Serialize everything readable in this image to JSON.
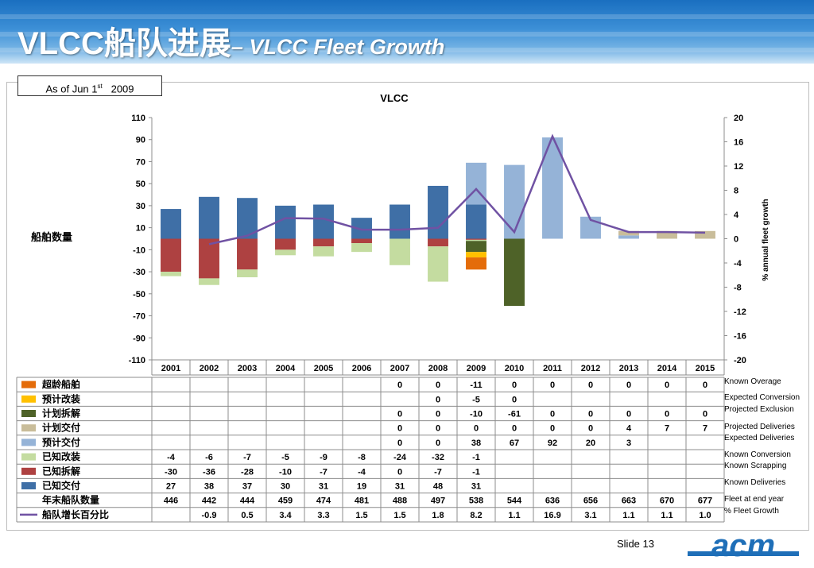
{
  "title": {
    "cn": "VLCC船队进展",
    "en": "– VLCC Fleet Growth"
  },
  "as_of": {
    "prefix": "As of Jun 1",
    "sup": "st",
    "year": "2009"
  },
  "slide": {
    "label": "Slide 13"
  },
  "logo": {
    "text": "acm"
  },
  "left_axis_label": "船舶数量",
  "right_axis_label": "% annual fleet growth",
  "colors": {
    "known_deliveries": "#3f6fa6",
    "known_scrapping": "#ae4141",
    "known_conversion": "#c4dca0",
    "expected_deliveries": "#95b3d7",
    "projected_deliveries": "#c9bd9a",
    "projected_exclusion": "#4e6228",
    "expected_conversion": "#ffc000",
    "known_overage": "#e46c0a",
    "growth_line": "#7052a3"
  },
  "chart_data": {
    "type": "bar",
    "title": "VLCC",
    "categories": [
      "2001",
      "2002",
      "2003",
      "2004",
      "2005",
      "2006",
      "2007",
      "2008",
      "2009",
      "2010",
      "2011",
      "2012",
      "2013",
      "2014",
      "2015"
    ],
    "ylim": [
      -110,
      110
    ],
    "yticks": [
      110,
      90,
      70,
      50,
      30,
      10,
      -10,
      -30,
      -50,
      -70,
      -90,
      -110
    ],
    "y2lim": [
      -20,
      20
    ],
    "y2ticks": [
      20,
      16,
      12,
      8,
      4,
      0,
      -4,
      -8,
      -12,
      -16,
      -20
    ],
    "series": [
      {
        "key": "known_deliveries",
        "values": [
          27,
          38,
          37,
          30,
          31,
          19,
          31,
          48,
          31,
          null,
          null,
          null,
          null,
          null,
          null
        ]
      },
      {
        "key": "expected_deliveries",
        "values": [
          null,
          null,
          null,
          null,
          null,
          null,
          0,
          0,
          38,
          67,
          92,
          20,
          3,
          null,
          null
        ]
      },
      {
        "key": "projected_deliveries",
        "values": [
          null,
          null,
          null,
          null,
          null,
          null,
          0,
          0,
          0,
          0,
          0,
          0,
          4,
          7,
          7
        ]
      },
      {
        "key": "known_scrapping",
        "values": [
          -30,
          -36,
          -28,
          -10,
          -7,
          -4,
          0,
          -7,
          -1,
          null,
          null,
          null,
          null,
          null,
          null
        ]
      },
      {
        "key": "known_conversion",
        "values": [
          -4,
          -6,
          -7,
          -5,
          -9,
          -8,
          -24,
          -32,
          -1,
          null,
          null,
          null,
          null,
          null,
          null
        ]
      },
      {
        "key": "projected_exclusion",
        "values": [
          null,
          null,
          null,
          null,
          null,
          null,
          0,
          0,
          -10,
          -61,
          0,
          0,
          0,
          0,
          0
        ]
      },
      {
        "key": "expected_conversion",
        "values": [
          null,
          null,
          null,
          null,
          null,
          null,
          null,
          0,
          -5,
          0,
          null,
          null,
          null,
          null,
          null
        ]
      },
      {
        "key": "known_overage",
        "values": [
          null,
          null,
          null,
          null,
          null,
          null,
          0,
          0,
          -11,
          0,
          0,
          0,
          0,
          0,
          0
        ]
      }
    ],
    "fleet_at_end_year": [
      446,
      442,
      444,
      459,
      474,
      481,
      488,
      497,
      538,
      544,
      636,
      656,
      663,
      670,
      677
    ],
    "growth_pct": [
      null,
      -0.9,
      0.5,
      3.4,
      3.3,
      1.5,
      1.5,
      1.8,
      8.2,
      1.1,
      16.9,
      3.1,
      1.1,
      1.1,
      1.0
    ],
    "table_rows": [
      {
        "key": "known_overage",
        "cn": "超龄船舶",
        "en": "Known Overage",
        "marker": "box",
        "cells": [
          "",
          "",
          "",
          "",
          "",
          "",
          "0",
          "0",
          "-11",
          "0",
          "0",
          "0",
          "0",
          "0",
          "0"
        ]
      },
      {
        "key": "expected_conversion",
        "cn": "预计改装",
        "en": "Expected Conversion",
        "marker": "box",
        "cells": [
          "",
          "",
          "",
          "",
          "",
          "",
          "",
          "0",
          "-5",
          "0",
          "",
          "",
          "",
          "",
          ""
        ]
      },
      {
        "key": "projected_exclusion",
        "cn": "计划拆解",
        "en": "Projected Exclusion",
        "marker": "box",
        "cells": [
          "",
          "",
          "",
          "",
          "",
          "",
          "0",
          "0",
          "-10",
          "-61",
          "0",
          "0",
          "0",
          "0",
          "0"
        ]
      },
      {
        "key": "projected_deliveries",
        "cn": "计划交付",
        "en": "Projected Deliveries",
        "marker": "box",
        "cells": [
          "",
          "",
          "",
          "",
          "",
          "",
          "0",
          "0",
          "0",
          "0",
          "0",
          "0",
          "4",
          "7",
          "7"
        ]
      },
      {
        "key": "expected_deliveries",
        "cn": "预计交付",
        "en": "Expected Deliveries",
        "marker": "box",
        "cells": [
          "",
          "",
          "",
          "",
          "",
          "",
          "0",
          "0",
          "38",
          "67",
          "92",
          "20",
          "3",
          "",
          ""
        ]
      },
      {
        "key": "known_conversion",
        "cn": "已知改装",
        "en": "Known Conversion",
        "marker": "box",
        "cells": [
          "-4",
          "-6",
          "-7",
          "-5",
          "-9",
          "-8",
          "-24",
          "-32",
          "-1",
          "",
          "",
          "",
          "",
          "",
          ""
        ]
      },
      {
        "key": "known_scrapping",
        "cn": "已知拆解",
        "en": "Known Scrapping",
        "marker": "box",
        "cells": [
          "-30",
          "-36",
          "-28",
          "-10",
          "-7",
          "-4",
          "0",
          "-7",
          "-1",
          "",
          "",
          "",
          "",
          "",
          ""
        ]
      },
      {
        "key": "known_deliveries",
        "cn": "已知交付",
        "en": "Known Deliveries",
        "marker": "box",
        "cells": [
          "27",
          "38",
          "37",
          "30",
          "31",
          "19",
          "31",
          "48",
          "31",
          "",
          "",
          "",
          "",
          "",
          ""
        ]
      },
      {
        "key": "fleet",
        "cn": "年末船队数量",
        "en": "Fleet at end year",
        "marker": "none",
        "cells": [
          "446",
          "442",
          "444",
          "459",
          "474",
          "481",
          "488",
          "497",
          "538",
          "544",
          "636",
          "656",
          "663",
          "670",
          "677"
        ]
      },
      {
        "key": "growth",
        "cn": "船队增长百分比",
        "en": "% Fleet Growth",
        "marker": "line",
        "cells": [
          "",
          "-0.9",
          "0.5",
          "3.4",
          "3.3",
          "1.5",
          "1.5",
          "1.8",
          "8.2",
          "1.1",
          "16.9",
          "3.1",
          "1.1",
          "1.1",
          "1.0"
        ]
      }
    ]
  }
}
